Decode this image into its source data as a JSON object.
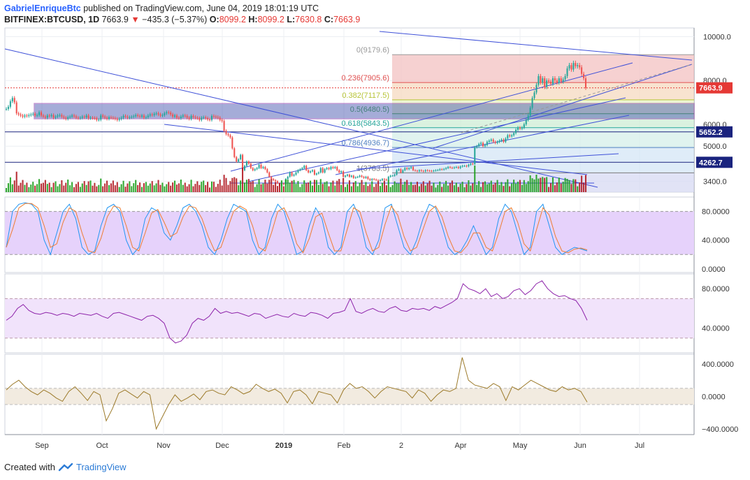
{
  "header": {
    "author": "GabrielEnriqueBtc",
    "published_text": "published on TradingView.com, June 04, 2019 18:01:19 UTC",
    "symbol": "BITFINEX:BTCUSD, 1D",
    "last": "7663.9",
    "change_arrow": "▼",
    "change": "−435.3 (−5.37%)",
    "open_label": "O:",
    "open": "8099.2",
    "high_label": "H:",
    "high": "8099.2",
    "low_label": "L:",
    "low": "7630.8",
    "close_label": "C:",
    "close": "7663.9"
  },
  "footer": {
    "created_with": "Created with",
    "brand": "TradingView",
    "logo_icon": "tradingview-logo-icon"
  },
  "colors": {
    "up": "#26a69a",
    "down": "#ef5350",
    "vol_up": "#1b9e1b",
    "vol_down": "#b0171f",
    "line": "#3f51d8",
    "stoch_k": "#2196f3",
    "stoch_d": "#ef7d32",
    "rsi": "#8e24aa",
    "cci": "#9c7a2a"
  },
  "chart_data": [
    {
      "type": "candlestick",
      "title": "BITFINEX:BTCUSD, 1D",
      "x_ticks": [
        "Sep",
        "Oct",
        "Nov",
        "Dec",
        "2019",
        "Feb",
        "2",
        "Apr",
        "May",
        "Jun",
        "Jul"
      ],
      "y_ticks": [
        "3400.0",
        "5000.0",
        "6000.0",
        "8000.0",
        "10000.0"
      ],
      "ylim": [
        2900,
        10400
      ],
      "price_labels": [
        "7663.9",
        "5652.2",
        "4262.7"
      ],
      "fibonacci": [
        {
          "label": "0(9179.6)",
          "value": 9179.6
        },
        {
          "label": "0.236(7905.6)",
          "value": 7905.6
        },
        {
          "label": "0.382(7117.5)",
          "value": 7117.5
        },
        {
          "label": "0.5(6480.5)",
          "value": 6480.5
        },
        {
          "label": "0.618(5843.5)",
          "value": 5843.5
        },
        {
          "label": "0.786(4936.7)",
          "value": 4936.7
        },
        {
          "label": "1(3783.5)",
          "value": 3783.5
        }
      ],
      "close_series": [
        6700,
        6800,
        7050,
        7200,
        7000,
        6500,
        6450,
        6400,
        6350,
        6400,
        6380,
        6420,
        6450,
        6480,
        6400,
        6420,
        6550,
        6400,
        6350,
        6300,
        6400,
        6380,
        6420,
        6300,
        6350,
        6400,
        6420,
        6350,
        6300,
        6250,
        6320,
        6350,
        6400,
        6360,
        6300,
        6280,
        6300,
        6350,
        6320,
        6400,
        6280,
        6300,
        6290,
        6280,
        6200,
        6210,
        6400,
        6350,
        6300,
        6250,
        6320,
        6300,
        6280,
        6250,
        6200,
        6250,
        6300,
        6380,
        6350,
        6300,
        6320,
        6340,
        6370,
        6420,
        6380,
        6350,
        6400,
        6300,
        6320,
        6400,
        6450,
        6420,
        6480,
        6500,
        6450,
        6400,
        6420,
        6500,
        6550,
        6530,
        6450,
        6350,
        6400,
        6300,
        6280,
        6350,
        6400,
        6380,
        6300,
        6250,
        6380,
        6330,
        6300,
        6280,
        6200,
        6300,
        6320,
        6280,
        6220,
        6200,
        6380,
        6350,
        6330,
        6300,
        6200,
        6150,
        5700,
        5550,
        5500,
        5400,
        4900,
        4500,
        4300,
        4400,
        4600,
        3900,
        4100,
        4300,
        4200,
        4000,
        3900,
        3950,
        4000,
        4150,
        4000,
        4050,
        3950,
        3800,
        3600,
        3500,
        3450,
        3400,
        3300,
        3200,
        3300,
        3250,
        3500,
        3600,
        3800,
        3650,
        3700,
        3800,
        3900,
        3950,
        4000,
        4100,
        3900,
        3800,
        3850,
        3900,
        3700,
        3750,
        3800,
        4000,
        3800,
        3950,
        4000,
        3950,
        4050,
        4000,
        4050,
        3900,
        3800,
        3850,
        3600,
        3650,
        3700,
        3600,
        3650,
        3550,
        3580,
        3600,
        3650,
        3600,
        3550,
        3600,
        3500,
        3450,
        3500,
        3480,
        3450,
        3420,
        3450,
        3500,
        3480,
        3450,
        3600,
        3650,
        3650,
        3700,
        3900,
        3950,
        3800,
        3900,
        4000,
        3950,
        4000,
        4050,
        3900,
        3880,
        3850,
        3900,
        3870,
        3850,
        3900,
        3880,
        3870,
        3860,
        3880,
        3900,
        3910,
        3950,
        3930,
        3960,
        4000,
        4050,
        4020,
        4000,
        4030,
        4050,
        4000,
        4070,
        4100,
        4100,
        4080,
        4150,
        4200,
        4180,
        4950,
        5000,
        5100,
        5150,
        5000,
        5050,
        5200,
        5250,
        5300,
        5200,
        5150,
        5200,
        5250,
        5300,
        5200,
        5350,
        5500,
        5450,
        5500,
        5600,
        5750,
        5850,
        5800,
        5850,
        6000,
        6200,
        6400,
        6750,
        7200,
        7450,
        7800,
        8200,
        7900,
        8100,
        7700,
        8000,
        7950,
        7850,
        8100,
        8000,
        7900,
        8100,
        7950,
        8050,
        8200,
        8550,
        8700,
        8500,
        8800,
        8650,
        8700,
        8600,
        8300,
        8100,
        7663.9
      ]
    },
    {
      "type": "line",
      "title": "Stochastic",
      "y_ticks": [
        "0.0000",
        "40.0000",
        "80.0000"
      ],
      "ylim": [
        -5,
        100
      ],
      "bands": [
        20,
        80
      ],
      "series": [
        {
          "values": [
            30,
            80,
            90,
            92,
            90,
            80,
            40,
            20,
            50,
            80,
            90,
            70,
            30,
            20,
            25,
            60,
            85,
            90,
            80,
            40,
            20,
            30,
            70,
            85,
            80,
            50,
            40,
            60,
            85,
            90,
            80,
            60,
            30,
            20,
            40,
            70,
            90,
            85,
            80,
            40,
            20,
            30,
            70,
            90,
            80,
            50,
            20,
            25,
            60,
            85,
            70,
            30,
            20,
            30,
            80,
            90,
            70,
            30,
            20,
            40,
            85,
            90,
            60,
            30,
            20,
            40,
            70,
            90,
            85,
            60,
            30,
            20,
            25,
            40,
            60,
            40,
            20,
            30,
            70,
            90,
            80,
            50,
            20,
            30,
            80,
            90,
            60,
            30,
            20,
            25,
            30,
            28,
            25
          ]
        }
      ]
    },
    {
      "type": "line",
      "title": "RSI",
      "y_ticks": [
        "40.0000",
        "80.0000"
      ],
      "ylim": [
        15,
        95
      ],
      "bands": [
        30,
        70
      ],
      "series": [
        {
          "values": [
            48,
            52,
            60,
            64,
            58,
            55,
            54,
            56,
            55,
            53,
            55,
            54,
            52,
            55,
            54,
            53,
            55,
            52,
            50,
            55,
            56,
            54,
            52,
            50,
            48,
            52,
            53,
            50,
            45,
            30,
            25,
            27,
            33,
            45,
            50,
            48,
            52,
            60,
            55,
            57,
            55,
            56,
            54,
            52,
            55,
            54,
            50,
            52,
            54,
            52,
            51,
            55,
            53,
            52,
            56,
            55,
            53,
            50,
            55,
            56,
            58,
            70,
            57,
            55,
            58,
            60,
            57,
            56,
            60,
            62,
            58,
            57,
            60,
            59,
            60,
            58,
            62,
            60,
            63,
            66,
            70,
            85,
            80,
            78,
            75,
            80,
            72,
            75,
            70,
            72,
            78,
            80,
            74,
            78,
            85,
            88,
            80,
            75,
            72,
            73,
            70,
            68,
            60,
            48
          ]
        }
      ]
    },
    {
      "type": "line",
      "title": "CCI",
      "y_ticks": [
        "−400.0000",
        "0.0000",
        "400.0000"
      ],
      "ylim": [
        -470,
        520
      ],
      "bands": [
        -100,
        100
      ],
      "series": [
        {
          "values": [
            80,
            150,
            200,
            120,
            60,
            20,
            80,
            40,
            -20,
            -60,
            60,
            120,
            40,
            -50,
            60,
            20,
            -300,
            -150,
            40,
            80,
            30,
            -20,
            60,
            20,
            -400,
            -250,
            -100,
            20,
            -60,
            -20,
            30,
            -40,
            60,
            80,
            40,
            20,
            120,
            80,
            30,
            60,
            150,
            100,
            60,
            90,
            40,
            -80,
            60,
            80,
            20,
            -90,
            60,
            40,
            20,
            -80,
            80,
            160,
            100,
            120,
            60,
            -20,
            60,
            120,
            100,
            80,
            60,
            -20,
            80,
            40,
            -60,
            20,
            80,
            60,
            100,
            480,
            200,
            140,
            120,
            100,
            160,
            120,
            -50,
            120,
            80,
            140,
            200,
            160,
            120,
            80,
            60,
            120,
            80,
            100,
            60,
            -70
          ]
        }
      ]
    }
  ]
}
